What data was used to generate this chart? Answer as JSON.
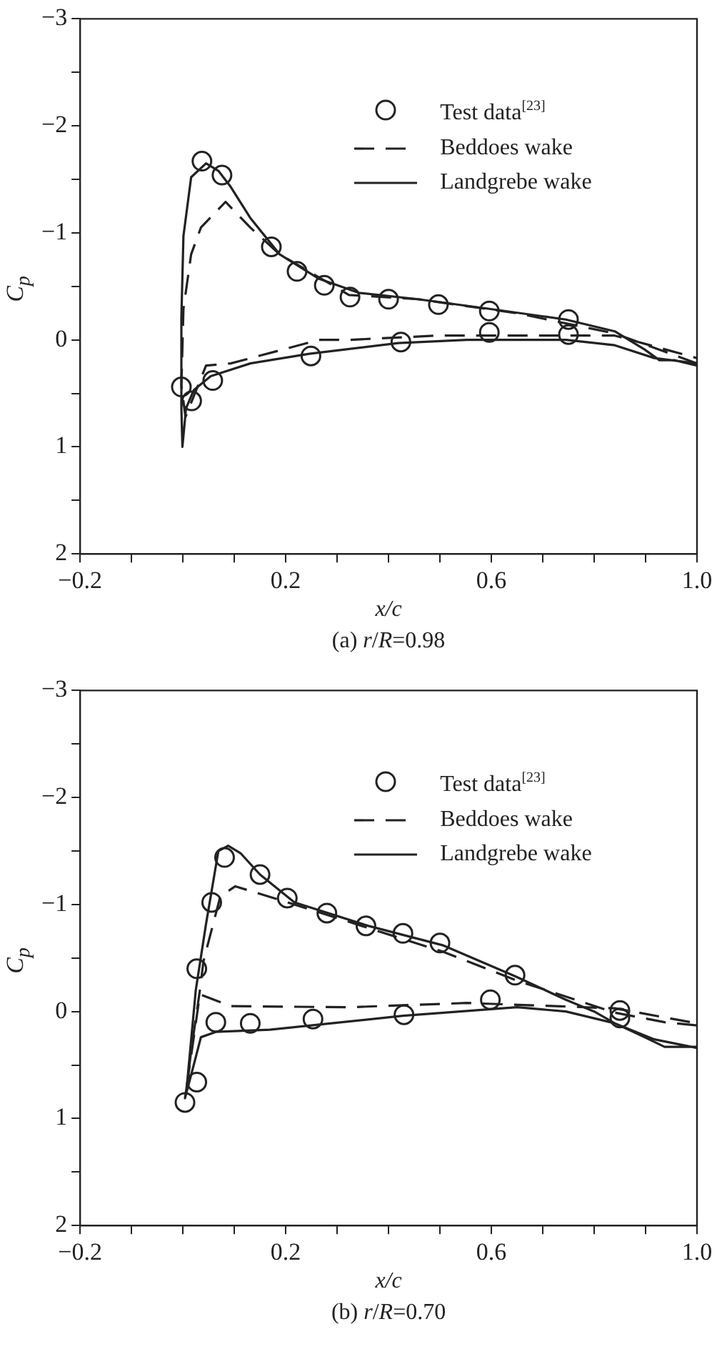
{
  "chart_data": [
    {
      "type": "line",
      "title": "(a) r/R=0.98",
      "xlabel": "x/c",
      "ylabel": "C$_{p}$",
      "legend": "top right",
      "xlim": [
        -0.2,
        1.0
      ],
      "ylim": [
        2,
        -3
      ],
      "xticks": [
        -0.2,
        {
          "value": -0.1,
          "label": null
        },
        {
          "value": 0,
          "label": null
        },
        {
          "value": 0.1,
          "label": null
        },
        0.2,
        {
          "value": 0.3,
          "label": null
        },
        {
          "value": 0.4,
          "label": null
        },
        {
          "value": 0.5,
          "label": null
        },
        0.6,
        {
          "value": 0.7,
          "label": null
        },
        {
          "value": 0.8,
          "label": null
        },
        {
          "value": 0.9,
          "label": null
        },
        {
          "value": 1.0,
          "label": "1.0"
        }
      ],
      "yticks": [
        -3,
        {
          "value": -2.5,
          "label": null
        },
        -2,
        {
          "value": -1.5,
          "label": null
        },
        -1,
        {
          "value": -0.5,
          "label": null
        },
        0,
        {
          "value": 0.5,
          "label": null
        },
        1,
        {
          "value": 1.5,
          "label": null
        },
        2
      ],
      "series": [
        {
          "name": "Test data$^{[23]}$",
          "type": "scatter",
          "marker": "circle",
          "color": "#222222",
          "x": [
            0.037,
            0.076,
            0.172,
            0.222,
            0.275,
            0.325,
            0.4,
            0.497,
            0.596,
            0.75,
            -0.003,
            0.017,
            0.058,
            0.249,
            0.424,
            0.596,
            0.75
          ],
          "values": [
            -1.67,
            -1.54,
            -0.87,
            -0.64,
            -0.51,
            -0.4,
            -0.38,
            -0.33,
            -0.27,
            -0.19,
            0.44,
            0.57,
            0.38,
            0.15,
            0.02,
            -0.07,
            -0.05
          ]
        },
        {
          "name": "Beddoes wake",
          "type": "line",
          "line_style": "dashed",
          "color": "#222222",
          "x": [
            1.0,
            0.84,
            0.649,
            0.457,
            0.323,
            0.188,
            0.131,
            0.083,
            0.035,
            0.016,
            0.001,
            -0.003,
            0.005,
            0.045,
            0.093,
            0.265,
            0.323,
            0.495,
            0.658,
            0.84,
            1.0
          ],
          "values": [
            0.22,
            -0.06,
            -0.25,
            -0.38,
            -0.42,
            -0.8,
            -1.05,
            -1.29,
            -1.05,
            -0.8,
            -0.29,
            0.43,
            0.72,
            0.24,
            0.22,
            0.0,
            0.0,
            -0.04,
            -0.04,
            -0.04,
            0.17
          ]
        },
        {
          "name": "Landgrebe wake",
          "type": "line",
          "line_style": "solid",
          "color": "#222222",
          "x": [
            1.0,
            0.956,
            0.927,
            0.898,
            0.84,
            0.745,
            0.596,
            0.457,
            0.342,
            0.265,
            0.188,
            0.131,
            0.093,
            0.069,
            0.045,
            0.016,
            0.001,
            -0.003,
            -0.003,
            -0.001,
            0.006,
            0.021,
            0.054,
            0.131,
            0.246,
            0.419,
            0.553,
            0.745,
            0.84,
            0.917,
            1.0
          ],
          "values": [
            0.24,
            0.19,
            0.19,
            0.09,
            -0.08,
            -0.19,
            -0.29,
            -0.38,
            -0.44,
            -0.57,
            -0.8,
            -1.14,
            -1.43,
            -1.58,
            -1.65,
            -1.52,
            -0.97,
            -0.21,
            0.64,
            1.0,
            0.64,
            0.47,
            0.34,
            0.22,
            0.13,
            0.03,
            0.0,
            0.0,
            0.05,
            0.17,
            0.22
          ]
        }
      ]
    },
    {
      "type": "line",
      "title": "(b) r/R=0.70",
      "xlabel": "x/c",
      "ylabel": "C$_{p}$",
      "legend": "top right",
      "xlim": [
        -0.2,
        1.0
      ],
      "ylim": [
        2,
        -3
      ],
      "xticks": [
        -0.2,
        {
          "value": -0.1,
          "label": null
        },
        {
          "value": 0,
          "label": null
        },
        {
          "value": 0.1,
          "label": null
        },
        0.2,
        {
          "value": 0.3,
          "label": null
        },
        {
          "value": 0.4,
          "label": null
        },
        {
          "value": 0.5,
          "label": null
        },
        0.6,
        {
          "value": 0.7,
          "label": null
        },
        {
          "value": 0.8,
          "label": null
        },
        {
          "value": 0.9,
          "label": null
        },
        {
          "value": 1.0,
          "label": "1.0"
        }
      ],
      "yticks": [
        -3,
        {
          "value": -2.5,
          "label": null
        },
        -2,
        {
          "value": -1.5,
          "label": null
        },
        -1,
        {
          "value": -0.5,
          "label": null
        },
        0,
        {
          "value": 0.5,
          "label": null
        },
        1,
        {
          "value": 1.5,
          "label": null
        },
        2
      ],
      "series": [
        {
          "name": "Test data$^{[23]}$",
          "type": "scatter",
          "marker": "circle",
          "color": "#222222",
          "x": [
            0.004,
            0.027,
            0.027,
            0.056,
            0.081,
            0.15,
            0.203,
            0.28,
            0.356,
            0.428,
            0.5,
            0.646,
            0.85,
            0.85,
            0.064,
            0.131,
            0.253,
            0.43,
            0.598
          ],
          "values": [
            0.85,
            0.66,
            -0.4,
            -1.02,
            -1.44,
            -1.28,
            -1.06,
            -0.92,
            -0.8,
            -0.73,
            -0.64,
            -0.34,
            -0.01,
            0.06,
            0.1,
            0.11,
            0.07,
            0.03,
            -0.11
          ]
        },
        {
          "name": "Beddoes wake",
          "type": "line",
          "line_style": "dashed",
          "color": "#222222",
          "x": [
            1.0,
            0.937,
            0.84,
            0.649,
            0.505,
            0.361,
            0.217,
            0.102,
            0.073,
            0.054,
            0.04,
            0.033,
            0.016,
            0.008,
            0.033,
            0.093,
            0.323,
            0.553,
            0.84,
            1.0
          ],
          "values": [
            0.13,
            0.1,
            0.01,
            -0.29,
            -0.56,
            -0.78,
            -1.0,
            -1.17,
            -1.08,
            -0.73,
            -0.47,
            -0.2,
            0.37,
            0.68,
            -0.16,
            -0.05,
            -0.04,
            -0.08,
            -0.03,
            0.11
          ]
        },
        {
          "name": "Landgrebe wake",
          "type": "line",
          "line_style": "solid",
          "color": "#222222",
          "x": [
            1.0,
            0.937,
            0.898,
            0.84,
            0.8,
            0.745,
            0.646,
            0.505,
            0.361,
            0.217,
            0.15,
            0.112,
            0.088,
            0.069,
            0.045,
            0.025,
            0.008,
            0.004,
            0.021,
            0.035,
            0.064,
            0.169,
            0.428,
            0.65,
            0.745,
            0.84,
            0.917,
            1.0
          ],
          "values": [
            0.33,
            0.33,
            0.24,
            0.11,
            0.0,
            -0.11,
            -0.33,
            -0.62,
            -0.8,
            -1.02,
            -1.28,
            -1.48,
            -1.55,
            -1.5,
            -0.82,
            -0.2,
            0.68,
            0.81,
            0.5,
            0.24,
            0.19,
            0.17,
            0.04,
            -0.04,
            0.0,
            0.11,
            0.26,
            0.34
          ]
        }
      ]
    }
  ]
}
